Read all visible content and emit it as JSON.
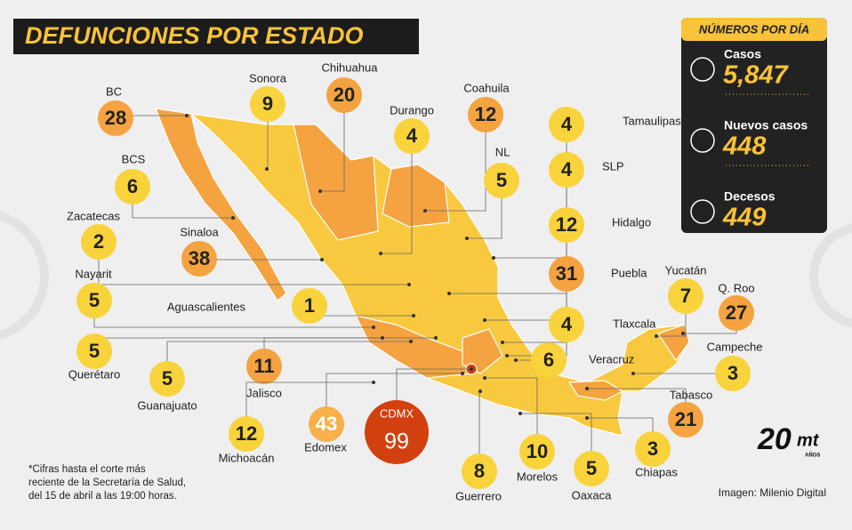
{
  "header": {
    "title": "DEFUNCIONES POR ESTADO"
  },
  "daily_panel": {
    "title": "NÚMEROS POR DÍA",
    "items": [
      {
        "label": "Casos",
        "value": "5,847"
      },
      {
        "label": "Nuevos casos",
        "value": "448"
      },
      {
        "label": "Decesos",
        "value": "449"
      }
    ]
  },
  "states": [
    {
      "name": "BC",
      "value": 28,
      "color": "#f4a340"
    },
    {
      "name": "Sonora",
      "value": 9,
      "color": "#f8d33b"
    },
    {
      "name": "Chihuahua",
      "value": 20,
      "color": "#f4a340"
    },
    {
      "name": "Coahuila",
      "value": 12,
      "color": "#f4a340"
    },
    {
      "name": "Durango",
      "value": 4,
      "color": "#f8d33b"
    },
    {
      "name": "Tamaulipas",
      "value": 4,
      "color": "#f8d33b"
    },
    {
      "name": "NL",
      "value": 5,
      "color": "#f8d33b"
    },
    {
      "name": "SLP",
      "value": 4,
      "color": "#f8d33b"
    },
    {
      "name": "BCS",
      "value": 6,
      "color": "#f8d33b"
    },
    {
      "name": "Zacatecas",
      "value": 2,
      "color": "#f8d33b"
    },
    {
      "name": "Sinaloa",
      "value": 38,
      "color": "#f4a340"
    },
    {
      "name": "Hidalgo",
      "value": 12,
      "color": "#f8d33b"
    },
    {
      "name": "Puebla",
      "value": 31,
      "color": "#f4a340"
    },
    {
      "name": "Nayarit",
      "value": 5,
      "color": "#f8d33b"
    },
    {
      "name": "Aguascalientes",
      "value": 1,
      "color": "#f8d33b"
    },
    {
      "name": "Yucatán",
      "value": 7,
      "color": "#f8d33b"
    },
    {
      "name": "Q. Roo",
      "value": 27,
      "color": "#f4a340"
    },
    {
      "name": "Tlaxcala",
      "value": 4,
      "color": "#f8d33b"
    },
    {
      "name": "Querétaro",
      "value": 5,
      "color": "#f8d33b"
    },
    {
      "name": "Veracruz",
      "value": 6,
      "color": "#f8d33b"
    },
    {
      "name": "Campeche",
      "value": 3,
      "color": "#f8d33b"
    },
    {
      "name": "Guanajuato",
      "value": 5,
      "color": "#f8d33b"
    },
    {
      "name": "Jalisco",
      "value": 11,
      "color": "#f4a340"
    },
    {
      "name": "Tabasco",
      "value": 21,
      "color": "#f4a340"
    },
    {
      "name": "Michoacán",
      "value": 12,
      "color": "#f8d33b"
    },
    {
      "name": "Edomex",
      "value": 43,
      "color": "#f7b04a"
    },
    {
      "name": "CDMX",
      "value": 99,
      "color": "#d2400f"
    },
    {
      "name": "Chiapas",
      "value": 3,
      "color": "#f8d33b"
    },
    {
      "name": "Guerrero",
      "value": 8,
      "color": "#f8d33b"
    },
    {
      "name": "Morelos",
      "value": 10,
      "color": "#f8d33b"
    },
    {
      "name": "Oaxaca",
      "value": 5,
      "color": "#f8d33b"
    }
  ],
  "footnote": [
    "*Cifras hasta el corte más",
    "reciente de la Secretaría de Salud,",
    "del 15 de abril a las 19:00 horas."
  ],
  "credit": "Imagen: Milenio Digital",
  "logo": {
    "number": "20",
    "brand": "mt",
    "caption": "AÑOS"
  }
}
